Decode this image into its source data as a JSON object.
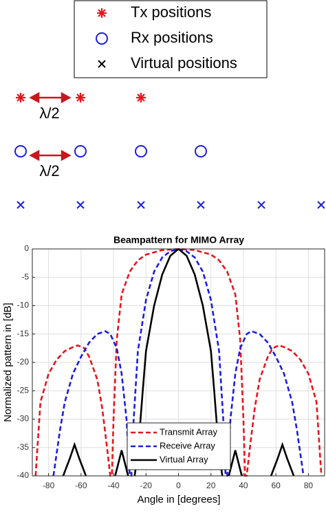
{
  "diagram": {
    "legend": [
      "Tx positions",
      "Rx positions",
      "Virtual positions"
    ],
    "annotations": [
      "λ/2",
      "λ/2"
    ]
  },
  "chart_data": {
    "type": "line",
    "title": "Beampattern for MIMO Array",
    "x_label": "Angle in [degrees]",
    "y_label": "Normalized pattern in [dB]",
    "xlim": [
      -90,
      90
    ],
    "xticks": [
      -80,
      -60,
      -40,
      -20,
      0,
      20,
      40,
      60,
      80
    ],
    "ylim": [
      -40,
      0
    ],
    "yticks": [
      -40,
      -35,
      -30,
      -25,
      -20,
      -15,
      -10,
      -5,
      0
    ],
    "grid": true,
    "legend": "bottom-center",
    "series": [
      {
        "name": "Transmit Array",
        "color": "#e8141c",
        "style": "dashed",
        "x": [
          -88,
          -85,
          -80,
          -75,
          -70,
          -65,
          -62,
          -58,
          -55,
          -50,
          -47,
          -44,
          -42,
          -41,
          -40,
          -38,
          -35,
          -30,
          -25,
          -20,
          -10,
          0,
          10,
          20,
          25,
          30,
          35,
          38,
          40,
          41,
          42,
          44,
          47,
          50,
          55,
          58,
          62,
          65,
          70,
          75,
          80,
          85,
          88
        ],
        "values": [
          -40,
          -27,
          -22,
          -19.5,
          -18,
          -17.3,
          -17,
          -17.5,
          -19,
          -23,
          -28,
          -35,
          -40,
          -40,
          -30,
          -16,
          -8,
          -4,
          -2,
          -1,
          -0.2,
          0,
          -0.2,
          -1,
          -2,
          -4,
          -8,
          -16,
          -30,
          -40,
          -40,
          -35,
          -28,
          -23,
          -19,
          -17.5,
          -17,
          -17.3,
          -18,
          -19.5,
          -22,
          -27,
          -40
        ]
      },
      {
        "name": "Receive Array",
        "color": "#1a1ee0",
        "style": "dashed",
        "x": [
          -77,
          -73,
          -70,
          -65,
          -60,
          -55,
          -50,
          -45,
          -42,
          -38,
          -35,
          -32,
          -30,
          -29,
          -28,
          -25,
          -20,
          -15,
          -10,
          -5,
          0,
          5,
          10,
          15,
          20,
          25,
          28,
          29,
          30,
          32,
          35,
          38,
          42,
          45,
          50,
          55,
          60,
          65,
          70,
          73,
          77
        ],
        "values": [
          -40,
          -32,
          -27,
          -22,
          -19,
          -16.5,
          -15,
          -14.5,
          -15,
          -17.5,
          -22,
          -30,
          -40,
          -40,
          -32,
          -18,
          -9,
          -4,
          -1.5,
          -0.4,
          0,
          -0.4,
          -1.5,
          -4,
          -9,
          -18,
          -32,
          -40,
          -40,
          -30,
          -22,
          -17.5,
          -15,
          -14.5,
          -15,
          -16.5,
          -19,
          -22,
          -27,
          -32,
          -40
        ]
      },
      {
        "name": "Virtual Array",
        "color": "#000000",
        "style": "solid",
        "x": [
          -71,
          -67,
          -64,
          -61,
          -57,
          -48,
          -39,
          -35,
          -31,
          -29,
          -27,
          -25,
          -22,
          -20,
          -15,
          -10,
          -5,
          0,
          5,
          10,
          15,
          20,
          22,
          25,
          27,
          29,
          31,
          35,
          39,
          48,
          57,
          61,
          64,
          67,
          71
        ],
        "values": [
          -40,
          -37,
          -34.5,
          -37,
          -40,
          null,
          -40,
          -35.5,
          -40,
          null,
          -40,
          -36,
          -25,
          -18,
          -10,
          -4.5,
          -1.2,
          0,
          -1.2,
          -4.5,
          -10,
          -18,
          -25,
          -36,
          -40,
          null,
          -40,
          -35.5,
          -40,
          null,
          -40,
          -37,
          -34.5,
          -37,
          -40
        ]
      }
    ]
  }
}
